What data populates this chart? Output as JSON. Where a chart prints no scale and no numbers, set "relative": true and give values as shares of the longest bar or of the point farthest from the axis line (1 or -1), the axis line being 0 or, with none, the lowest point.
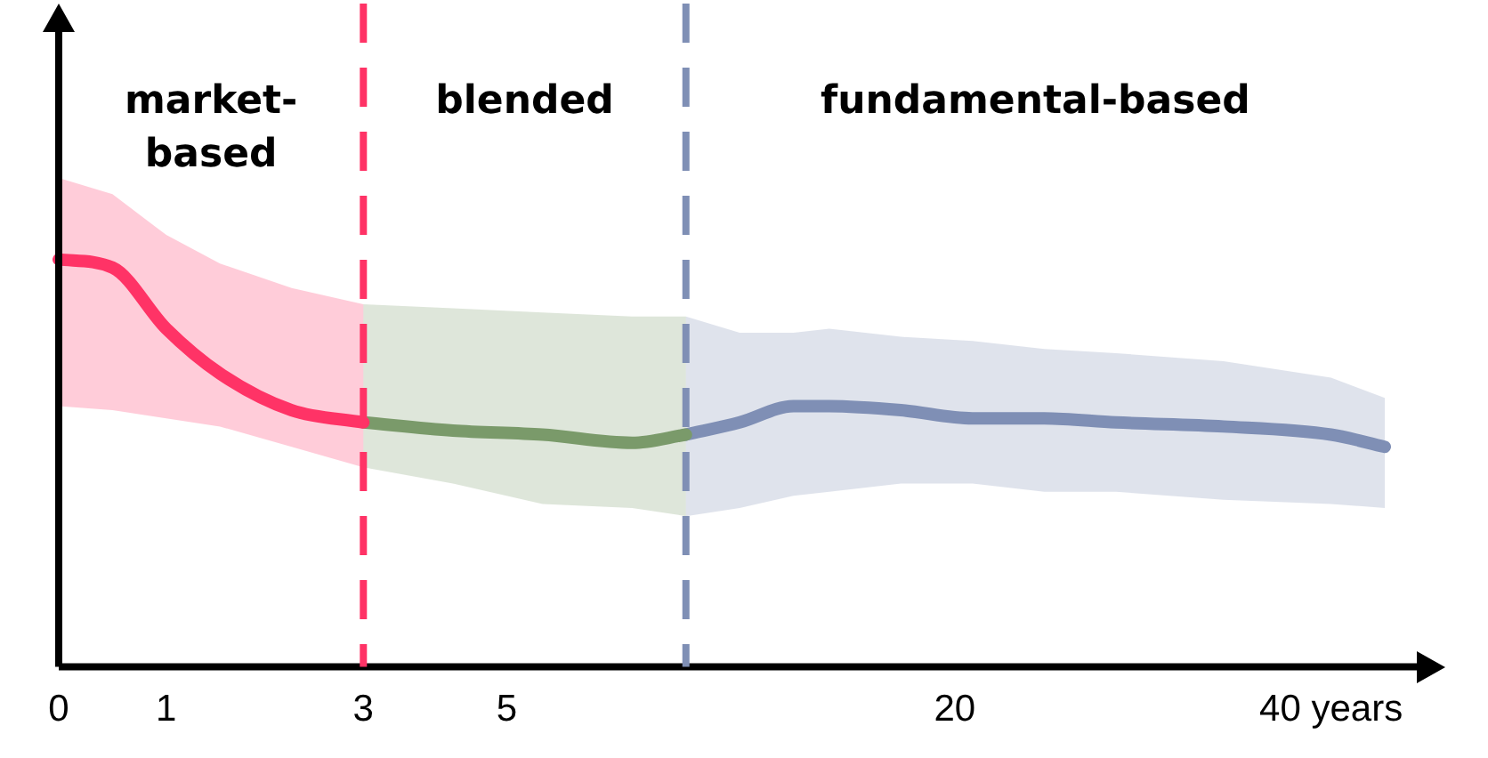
{
  "chart_data": {
    "type": "line",
    "relative": true,
    "annotations": [
      "market-based",
      "blended",
      "fundamental-based"
    ],
    "categories": [
      "0",
      null,
      null,
      null,
      null,
      null,
      "1",
      null,
      null,
      null,
      null,
      null,
      null,
      null,
      null,
      null,
      null,
      "3",
      null,
      null,
      null,
      null,
      null,
      null,
      null,
      "5",
      null,
      null,
      null,
      null,
      null,
      null,
      null,
      null,
      null,
      null,
      null,
      null,
      null,
      null,
      null,
      null,
      null,
      null,
      null,
      null,
      null,
      null,
      null,
      null,
      "20",
      null,
      null,
      null,
      null,
      null,
      null,
      null,
      null,
      null,
      null,
      null,
      null,
      null,
      null,
      null,
      null,
      null,
      null,
      null,
      null,
      "40 years",
      null,
      null,
      null
    ],
    "series": [
      {
        "color": "#ff3366",
        "values": [
          1,
          null,
          null,
          0.98,
          null,
          null,
          0.83,
          null,
          null,
          0.72,
          null,
          null,
          null,
          0.63,
          null,
          null,
          null,
          0.6,
          null,
          null,
          null,
          null,
          null,
          null,
          null,
          null,
          null,
          null,
          null,
          null,
          null,
          null,
          null,
          null,
          null,
          null,
          null,
          null,
          null,
          null,
          null,
          null,
          null,
          null,
          null,
          null,
          null,
          null,
          null,
          null,
          null,
          null,
          null,
          null,
          null,
          null,
          null,
          null,
          null,
          null,
          null,
          null,
          null,
          null,
          null,
          null,
          null,
          null,
          null,
          null,
          null,
          null,
          null,
          null,
          null
        ],
        "upper": [
          1.2,
          null,
          null,
          1.16,
          null,
          null,
          1.06,
          null,
          null,
          0.99,
          null,
          null,
          null,
          0.93,
          null,
          null,
          null,
          0.89,
          null,
          null,
          null,
          null,
          null,
          null,
          null,
          null,
          null,
          null,
          null,
          null,
          null,
          null,
          null,
          null,
          null,
          null,
          null,
          null,
          null,
          null,
          null,
          null,
          null,
          null,
          null,
          null,
          null,
          null,
          null,
          null,
          null,
          null,
          null,
          null,
          null,
          null,
          null,
          null,
          null,
          null,
          null,
          null,
          null,
          null,
          null,
          null,
          null,
          null,
          null,
          null,
          null,
          null,
          null,
          null,
          null
        ],
        "lower": [
          0.64,
          null,
          null,
          0.63,
          null,
          null,
          0.61,
          null,
          null,
          0.59,
          null,
          null,
          null,
          0.54,
          null,
          null,
          null,
          0.49,
          null,
          null,
          null,
          null,
          null,
          null,
          null,
          null,
          null,
          null,
          null,
          null,
          null,
          null,
          null,
          null,
          null,
          null,
          null,
          null,
          null,
          null,
          null,
          null,
          null,
          null,
          null,
          null,
          null,
          null,
          null,
          null,
          null,
          null,
          null,
          null,
          null,
          null,
          null,
          null,
          null,
          null,
          null,
          null,
          null,
          null,
          null,
          null,
          null,
          null,
          null,
          null,
          null,
          null,
          null,
          null,
          null
        ]
      },
      {
        "color": "#7a9a6a",
        "values": [
          null,
          null,
          null,
          null,
          null,
          null,
          null,
          null,
          null,
          null,
          null,
          null,
          null,
          null,
          null,
          null,
          null,
          0.6,
          null,
          null,
          null,
          null,
          0.58,
          null,
          null,
          null,
          null,
          0.57,
          null,
          null,
          null,
          null,
          0.55,
          null,
          null,
          0.57,
          null,
          null,
          null,
          null,
          null,
          null,
          null,
          null,
          null,
          null,
          null,
          null,
          null,
          null,
          null,
          null,
          null,
          null,
          null,
          null,
          null,
          null,
          null,
          null,
          null,
          null,
          null,
          null,
          null,
          null,
          null,
          null,
          null,
          null,
          null,
          null,
          null,
          null,
          null
        ],
        "upper": [
          null,
          null,
          null,
          null,
          null,
          null,
          null,
          null,
          null,
          null,
          null,
          null,
          null,
          null,
          null,
          null,
          null,
          0.89,
          null,
          null,
          null,
          null,
          0.88,
          null,
          null,
          null,
          null,
          0.87,
          null,
          null,
          null,
          null,
          0.86,
          null,
          null,
          0.86,
          null,
          null,
          null,
          null,
          null,
          null,
          null,
          null,
          null,
          null,
          null,
          null,
          null,
          null,
          null,
          null,
          null,
          null,
          null,
          null,
          null,
          null,
          null,
          null,
          null,
          null,
          null,
          null,
          null,
          null,
          null,
          null,
          null,
          null,
          null,
          null,
          null,
          null,
          null
        ],
        "lower": [
          null,
          null,
          null,
          null,
          null,
          null,
          null,
          null,
          null,
          null,
          null,
          null,
          null,
          null,
          null,
          null,
          null,
          0.49,
          null,
          null,
          null,
          null,
          0.45,
          null,
          null,
          null,
          null,
          0.4,
          null,
          null,
          null,
          null,
          0.39,
          null,
          null,
          0.37,
          null,
          null,
          null,
          null,
          null,
          null,
          null,
          null,
          null,
          null,
          null,
          null,
          null,
          null,
          null,
          null,
          null,
          null,
          null,
          null,
          null,
          null,
          null,
          null,
          null,
          null,
          null,
          null,
          null,
          null,
          null,
          null,
          null,
          null,
          null,
          null,
          null,
          null,
          null
        ]
      },
      {
        "color": "#7f8fb5",
        "values": [
          null,
          null,
          null,
          null,
          null,
          null,
          null,
          null,
          null,
          null,
          null,
          null,
          null,
          null,
          null,
          null,
          null,
          null,
          null,
          null,
          null,
          null,
          null,
          null,
          null,
          null,
          null,
          null,
          null,
          null,
          null,
          null,
          null,
          null,
          null,
          0.57,
          null,
          null,
          0.6,
          null,
          null,
          0.64,
          null,
          0.64,
          null,
          null,
          null,
          0.63,
          null,
          null,
          null,
          0.61,
          null,
          null,
          null,
          0.61,
          null,
          null,
          null,
          0.6,
          null,
          null,
          null,
          null,
          null,
          0.59,
          null,
          null,
          null,
          null,
          null,
          0.57,
          null,
          null,
          0.54
        ],
        "upper": [
          null,
          null,
          null,
          null,
          null,
          null,
          null,
          null,
          null,
          null,
          null,
          null,
          null,
          null,
          null,
          null,
          null,
          null,
          null,
          null,
          null,
          null,
          null,
          null,
          null,
          null,
          null,
          null,
          null,
          null,
          null,
          null,
          null,
          null,
          null,
          0.86,
          null,
          null,
          0.82,
          null,
          null,
          0.82,
          null,
          0.83,
          null,
          null,
          null,
          0.81,
          null,
          null,
          null,
          0.8,
          null,
          null,
          null,
          0.78,
          null,
          null,
          null,
          0.77,
          null,
          null,
          null,
          null,
          null,
          0.75,
          null,
          null,
          null,
          null,
          null,
          0.71,
          null,
          null,
          0.66
        ],
        "lower": [
          null,
          null,
          null,
          null,
          null,
          null,
          null,
          null,
          null,
          null,
          null,
          null,
          null,
          null,
          null,
          null,
          null,
          null,
          null,
          null,
          null,
          null,
          null,
          null,
          null,
          null,
          null,
          null,
          null,
          null,
          null,
          null,
          null,
          null,
          null,
          0.37,
          null,
          null,
          0.39,
          null,
          null,
          0.42,
          null,
          0.43,
          null,
          null,
          null,
          0.45,
          null,
          null,
          null,
          0.45,
          null,
          null,
          null,
          0.43,
          null,
          null,
          null,
          0.43,
          null,
          null,
          null,
          null,
          null,
          0.41,
          null,
          null,
          null,
          null,
          null,
          0.4,
          null,
          null,
          0.39
        ]
      }
    ],
    "ref_lines": [
      {
        "axis": "x",
        "value": "3",
        "color": "#ff3366",
        "line_style": "dashed"
      },
      {
        "axis": "x",
        "color": "#7f8fb5",
        "line_style": "dashed"
      }
    ],
    "grid": false,
    "legend": false,
    "line_style": "solid",
    "marker": "none"
  }
}
